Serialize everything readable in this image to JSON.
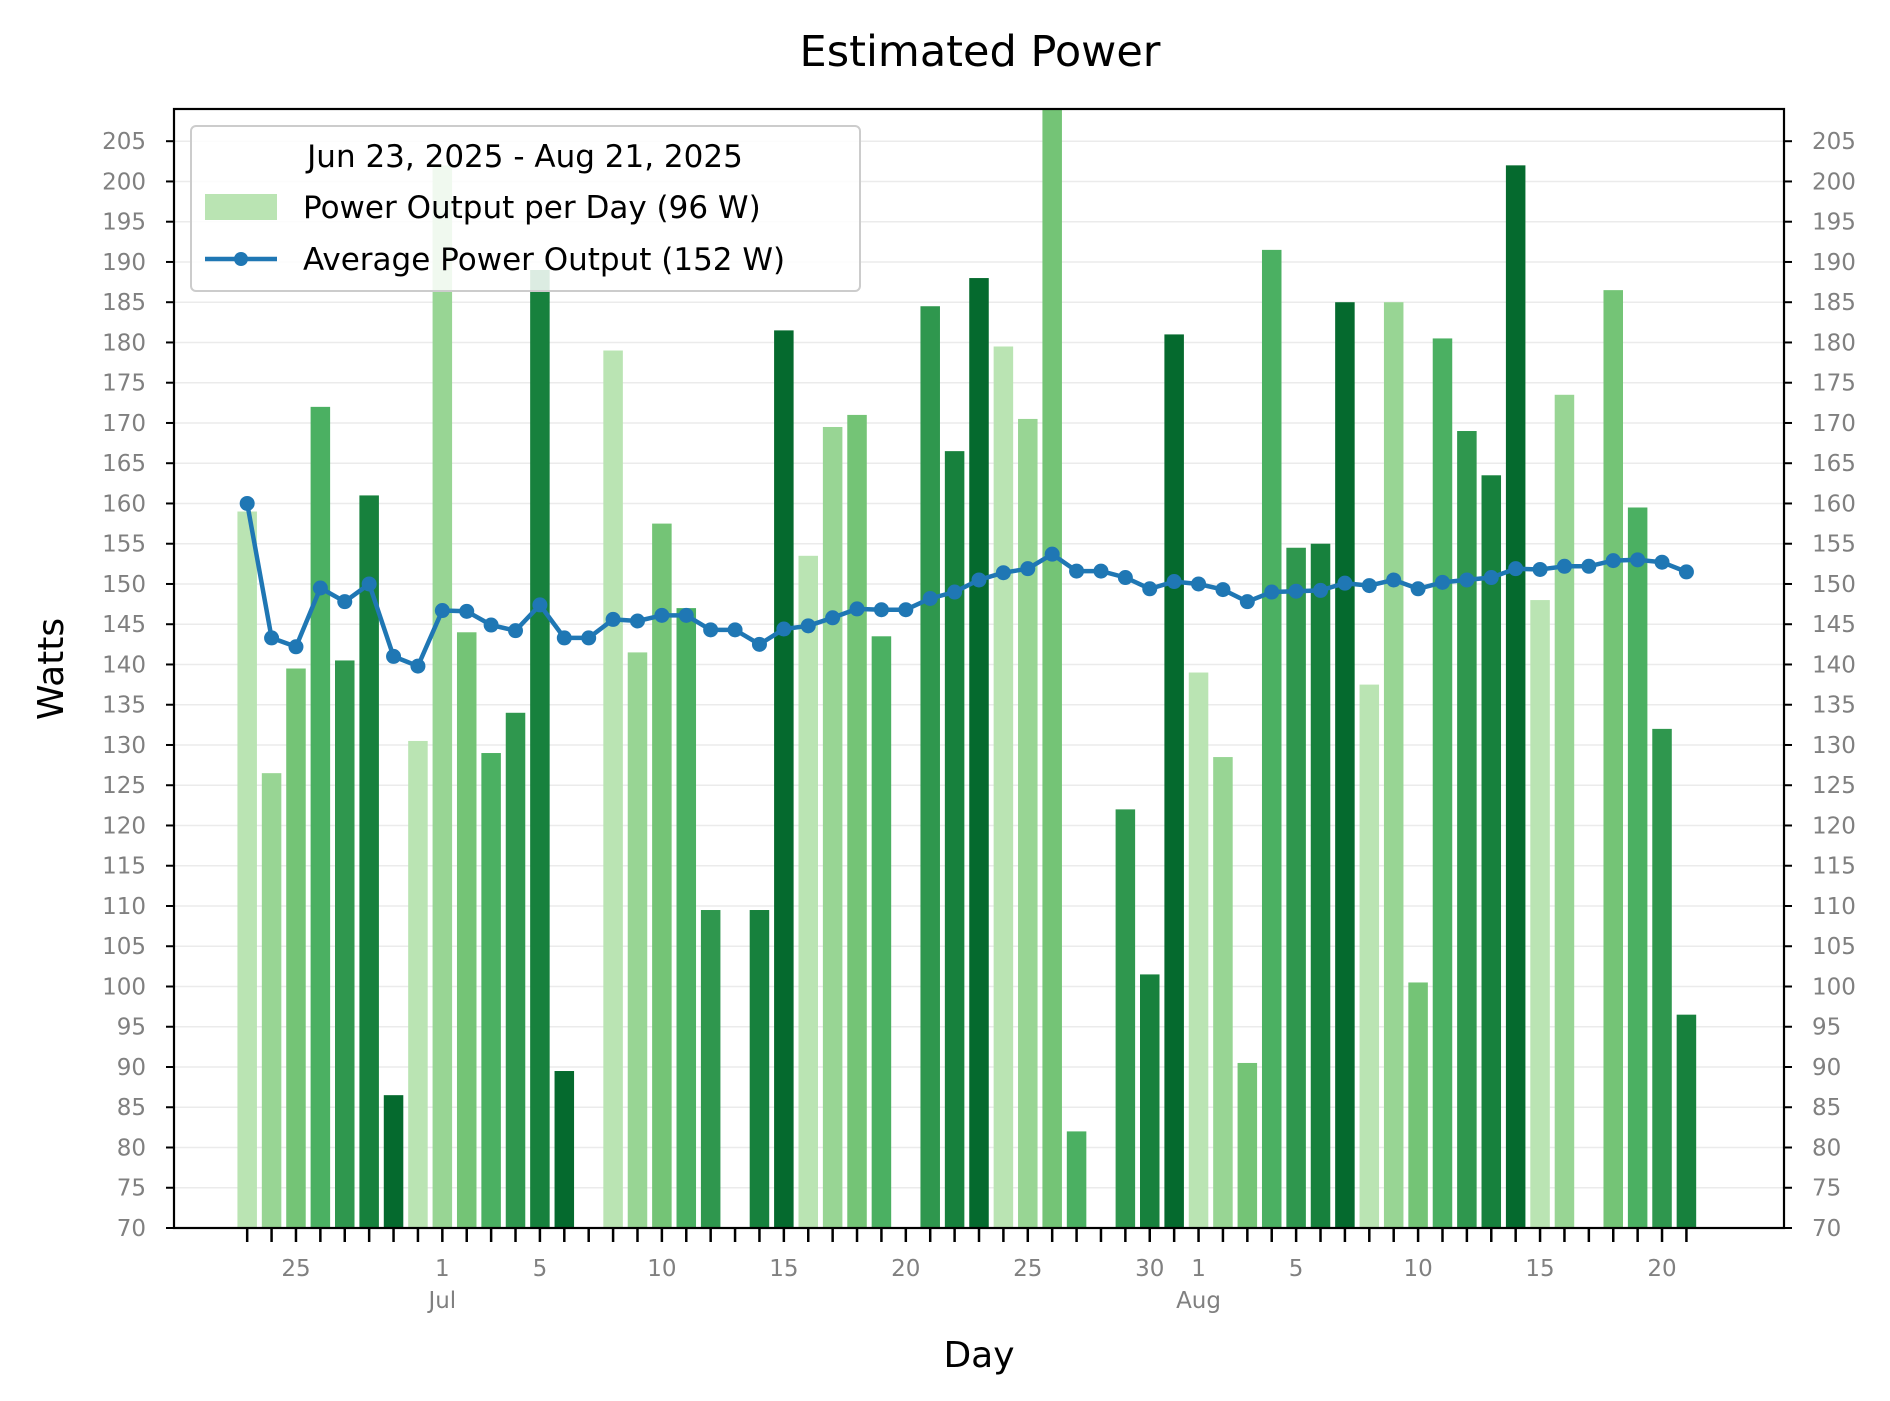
{
  "chart_data": {
    "type": "bar",
    "title": "Estimated Power",
    "xlabel": "Day",
    "ylabel": "Watts",
    "ylim": [
      70,
      209
    ],
    "yticks": [
      70,
      75,
      80,
      85,
      90,
      95,
      100,
      105,
      110,
      115,
      120,
      125,
      130,
      135,
      140,
      145,
      150,
      155,
      160,
      165,
      170,
      175,
      180,
      185,
      190,
      195,
      200,
      205
    ],
    "x_tick_labels": [
      {
        "date": "2025-06-25",
        "day": "25",
        "month": ""
      },
      {
        "date": "2025-07-01",
        "day": "1",
        "month": "Jul"
      },
      {
        "date": "2025-07-05",
        "day": "5",
        "month": ""
      },
      {
        "date": "2025-07-10",
        "day": "10",
        "month": ""
      },
      {
        "date": "2025-07-15",
        "day": "15",
        "month": ""
      },
      {
        "date": "2025-07-20",
        "day": "20",
        "month": ""
      },
      {
        "date": "2025-07-25",
        "day": "25",
        "month": ""
      },
      {
        "date": "2025-07-30",
        "day": "30",
        "month": ""
      },
      {
        "date": "2025-08-01",
        "day": "1",
        "month": "Aug"
      },
      {
        "date": "2025-08-05",
        "day": "5",
        "month": ""
      },
      {
        "date": "2025-08-10",
        "day": "10",
        "month": ""
      },
      {
        "date": "2025-08-15",
        "day": "15",
        "month": ""
      },
      {
        "date": "2025-08-20",
        "day": "20",
        "month": ""
      }
    ],
    "legend": {
      "title": "Jun 23, 2025 - Aug 21, 2025",
      "placement": "top-left",
      "entries": [
        "Power Output per Day (96 W)",
        "Average Power Output (152 W)"
      ]
    },
    "series": [
      {
        "name": "Power Output per Day (96 W)",
        "type": "bar",
        "colors": [
          "#bae4b3",
          "#98d594",
          "#74c476",
          "#4bb062",
          "#2f974e",
          "#17813d",
          "#056a2e"
        ],
        "points": [
          {
            "date": "2025-06-23",
            "value": 159
          },
          {
            "date": "2025-06-24",
            "value": 126.5
          },
          {
            "date": "2025-06-25",
            "value": 139.5
          },
          {
            "date": "2025-06-26",
            "value": 172
          },
          {
            "date": "2025-06-27",
            "value": 140.5
          },
          {
            "date": "2025-06-28",
            "value": 161
          },
          {
            "date": "2025-06-29",
            "value": 86.5
          },
          {
            "date": "2025-06-30",
            "value": 130.5
          },
          {
            "date": "2025-07-01",
            "value": 202
          },
          {
            "date": "2025-07-02",
            "value": 144
          },
          {
            "date": "2025-07-03",
            "value": 129
          },
          {
            "date": "2025-07-04",
            "value": 134
          },
          {
            "date": "2025-07-05",
            "value": 189
          },
          {
            "date": "2025-07-06",
            "value": 89.5
          },
          {
            "date": "2025-07-08",
            "value": 179
          },
          {
            "date": "2025-07-09",
            "value": 141.5
          },
          {
            "date": "2025-07-10",
            "value": 157.5
          },
          {
            "date": "2025-07-11",
            "value": 147
          },
          {
            "date": "2025-07-12",
            "value": 109.5
          },
          {
            "date": "2025-07-14",
            "value": 109.5
          },
          {
            "date": "2025-07-15",
            "value": 181.5
          },
          {
            "date": "2025-07-16",
            "value": 153.5
          },
          {
            "date": "2025-07-17",
            "value": 169.5
          },
          {
            "date": "2025-07-18",
            "value": 171
          },
          {
            "date": "2025-07-19",
            "value": 143.5
          },
          {
            "date": "2025-07-21",
            "value": 184.5
          },
          {
            "date": "2025-07-22",
            "value": 166.5
          },
          {
            "date": "2025-07-23",
            "value": 188
          },
          {
            "date": "2025-07-24",
            "value": 179.5
          },
          {
            "date": "2025-07-25",
            "value": 170.5
          },
          {
            "date": "2025-07-26",
            "value": 209
          },
          {
            "date": "2025-07-27",
            "value": 82
          },
          {
            "date": "2025-07-29",
            "value": 122
          },
          {
            "date": "2025-07-30",
            "value": 101.5
          },
          {
            "date": "2025-07-31",
            "value": 181
          },
          {
            "date": "2025-08-01",
            "value": 139
          },
          {
            "date": "2025-08-02",
            "value": 128.5
          },
          {
            "date": "2025-08-03",
            "value": 90.5
          },
          {
            "date": "2025-08-04",
            "value": 191.5
          },
          {
            "date": "2025-08-05",
            "value": 154.5
          },
          {
            "date": "2025-08-06",
            "value": 155
          },
          {
            "date": "2025-08-07",
            "value": 185
          },
          {
            "date": "2025-08-08",
            "value": 137.5
          },
          {
            "date": "2025-08-09",
            "value": 185
          },
          {
            "date": "2025-08-10",
            "value": 100.5
          },
          {
            "date": "2025-08-11",
            "value": 180.5
          },
          {
            "date": "2025-08-12",
            "value": 169
          },
          {
            "date": "2025-08-13",
            "value": 163.5
          },
          {
            "date": "2025-08-14",
            "value": 202
          },
          {
            "date": "2025-08-15",
            "value": 148
          },
          {
            "date": "2025-08-16",
            "value": 173.5
          },
          {
            "date": "2025-08-18",
            "value": 186.5
          },
          {
            "date": "2025-08-19",
            "value": 159.5
          },
          {
            "date": "2025-08-20",
            "value": 132
          },
          {
            "date": "2025-08-21",
            "value": 96.5
          }
        ]
      },
      {
        "name": "Average Power Output (152 W)",
        "type": "line",
        "color": "#1f77b4",
        "points": [
          {
            "date": "2025-06-23",
            "value": 160
          },
          {
            "date": "2025-06-24",
            "value": 143.3
          },
          {
            "date": "2025-06-25",
            "value": 142.2
          },
          {
            "date": "2025-06-26",
            "value": 149.5
          },
          {
            "date": "2025-06-27",
            "value": 147.8
          },
          {
            "date": "2025-06-28",
            "value": 150
          },
          {
            "date": "2025-06-29",
            "value": 141
          },
          {
            "date": "2025-06-30",
            "value": 139.8
          },
          {
            "date": "2025-07-01",
            "value": 146.7
          },
          {
            "date": "2025-07-02",
            "value": 146.6
          },
          {
            "date": "2025-07-03",
            "value": 144.9
          },
          {
            "date": "2025-07-04",
            "value": 144.2
          },
          {
            "date": "2025-07-05",
            "value": 147.4
          },
          {
            "date": "2025-07-06",
            "value": 143.3
          },
          {
            "date": "2025-07-07",
            "value": 143.3
          },
          {
            "date": "2025-07-08",
            "value": 145.6
          },
          {
            "date": "2025-07-09",
            "value": 145.4
          },
          {
            "date": "2025-07-10",
            "value": 146.1
          },
          {
            "date": "2025-07-11",
            "value": 146.1
          },
          {
            "date": "2025-07-12",
            "value": 144.3
          },
          {
            "date": "2025-07-13",
            "value": 144.3
          },
          {
            "date": "2025-07-14",
            "value": 142.5
          },
          {
            "date": "2025-07-15",
            "value": 144.4
          },
          {
            "date": "2025-07-16",
            "value": 144.8
          },
          {
            "date": "2025-07-17",
            "value": 145.8
          },
          {
            "date": "2025-07-18",
            "value": 146.9
          },
          {
            "date": "2025-07-19",
            "value": 146.8
          },
          {
            "date": "2025-07-20",
            "value": 146.8
          },
          {
            "date": "2025-07-21",
            "value": 148.2
          },
          {
            "date": "2025-07-22",
            "value": 149
          },
          {
            "date": "2025-07-23",
            "value": 150.5
          },
          {
            "date": "2025-07-24",
            "value": 151.4
          },
          {
            "date": "2025-07-25",
            "value": 151.9
          },
          {
            "date": "2025-07-26",
            "value": 153.7
          },
          {
            "date": "2025-07-27",
            "value": 151.6
          },
          {
            "date": "2025-07-28",
            "value": 151.6
          },
          {
            "date": "2025-07-29",
            "value": 150.8
          },
          {
            "date": "2025-07-30",
            "value": 149.4
          },
          {
            "date": "2025-07-31",
            "value": 150.3
          },
          {
            "date": "2025-08-01",
            "value": 150
          },
          {
            "date": "2025-08-02",
            "value": 149.3
          },
          {
            "date": "2025-08-03",
            "value": 147.8
          },
          {
            "date": "2025-08-04",
            "value": 149
          },
          {
            "date": "2025-08-05",
            "value": 149.1
          },
          {
            "date": "2025-08-06",
            "value": 149.2
          },
          {
            "date": "2025-08-07",
            "value": 150.1
          },
          {
            "date": "2025-08-08",
            "value": 149.8
          },
          {
            "date": "2025-08-09",
            "value": 150.5
          },
          {
            "date": "2025-08-10",
            "value": 149.4
          },
          {
            "date": "2025-08-11",
            "value": 150.2
          },
          {
            "date": "2025-08-12",
            "value": 150.5
          },
          {
            "date": "2025-08-13",
            "value": 150.8
          },
          {
            "date": "2025-08-14",
            "value": 151.9
          },
          {
            "date": "2025-08-15",
            "value": 151.8
          },
          {
            "date": "2025-08-16",
            "value": 152.2
          },
          {
            "date": "2025-08-17",
            "value": 152.2
          },
          {
            "date": "2025-08-18",
            "value": 152.9
          },
          {
            "date": "2025-08-19",
            "value": 153
          },
          {
            "date": "2025-08-20",
            "value": 152.7
          },
          {
            "date": "2025-08-21",
            "value": 151.5
          }
        ]
      }
    ],
    "grid": {
      "y": true,
      "x": false
    },
    "right_axis_mirrored": true
  }
}
